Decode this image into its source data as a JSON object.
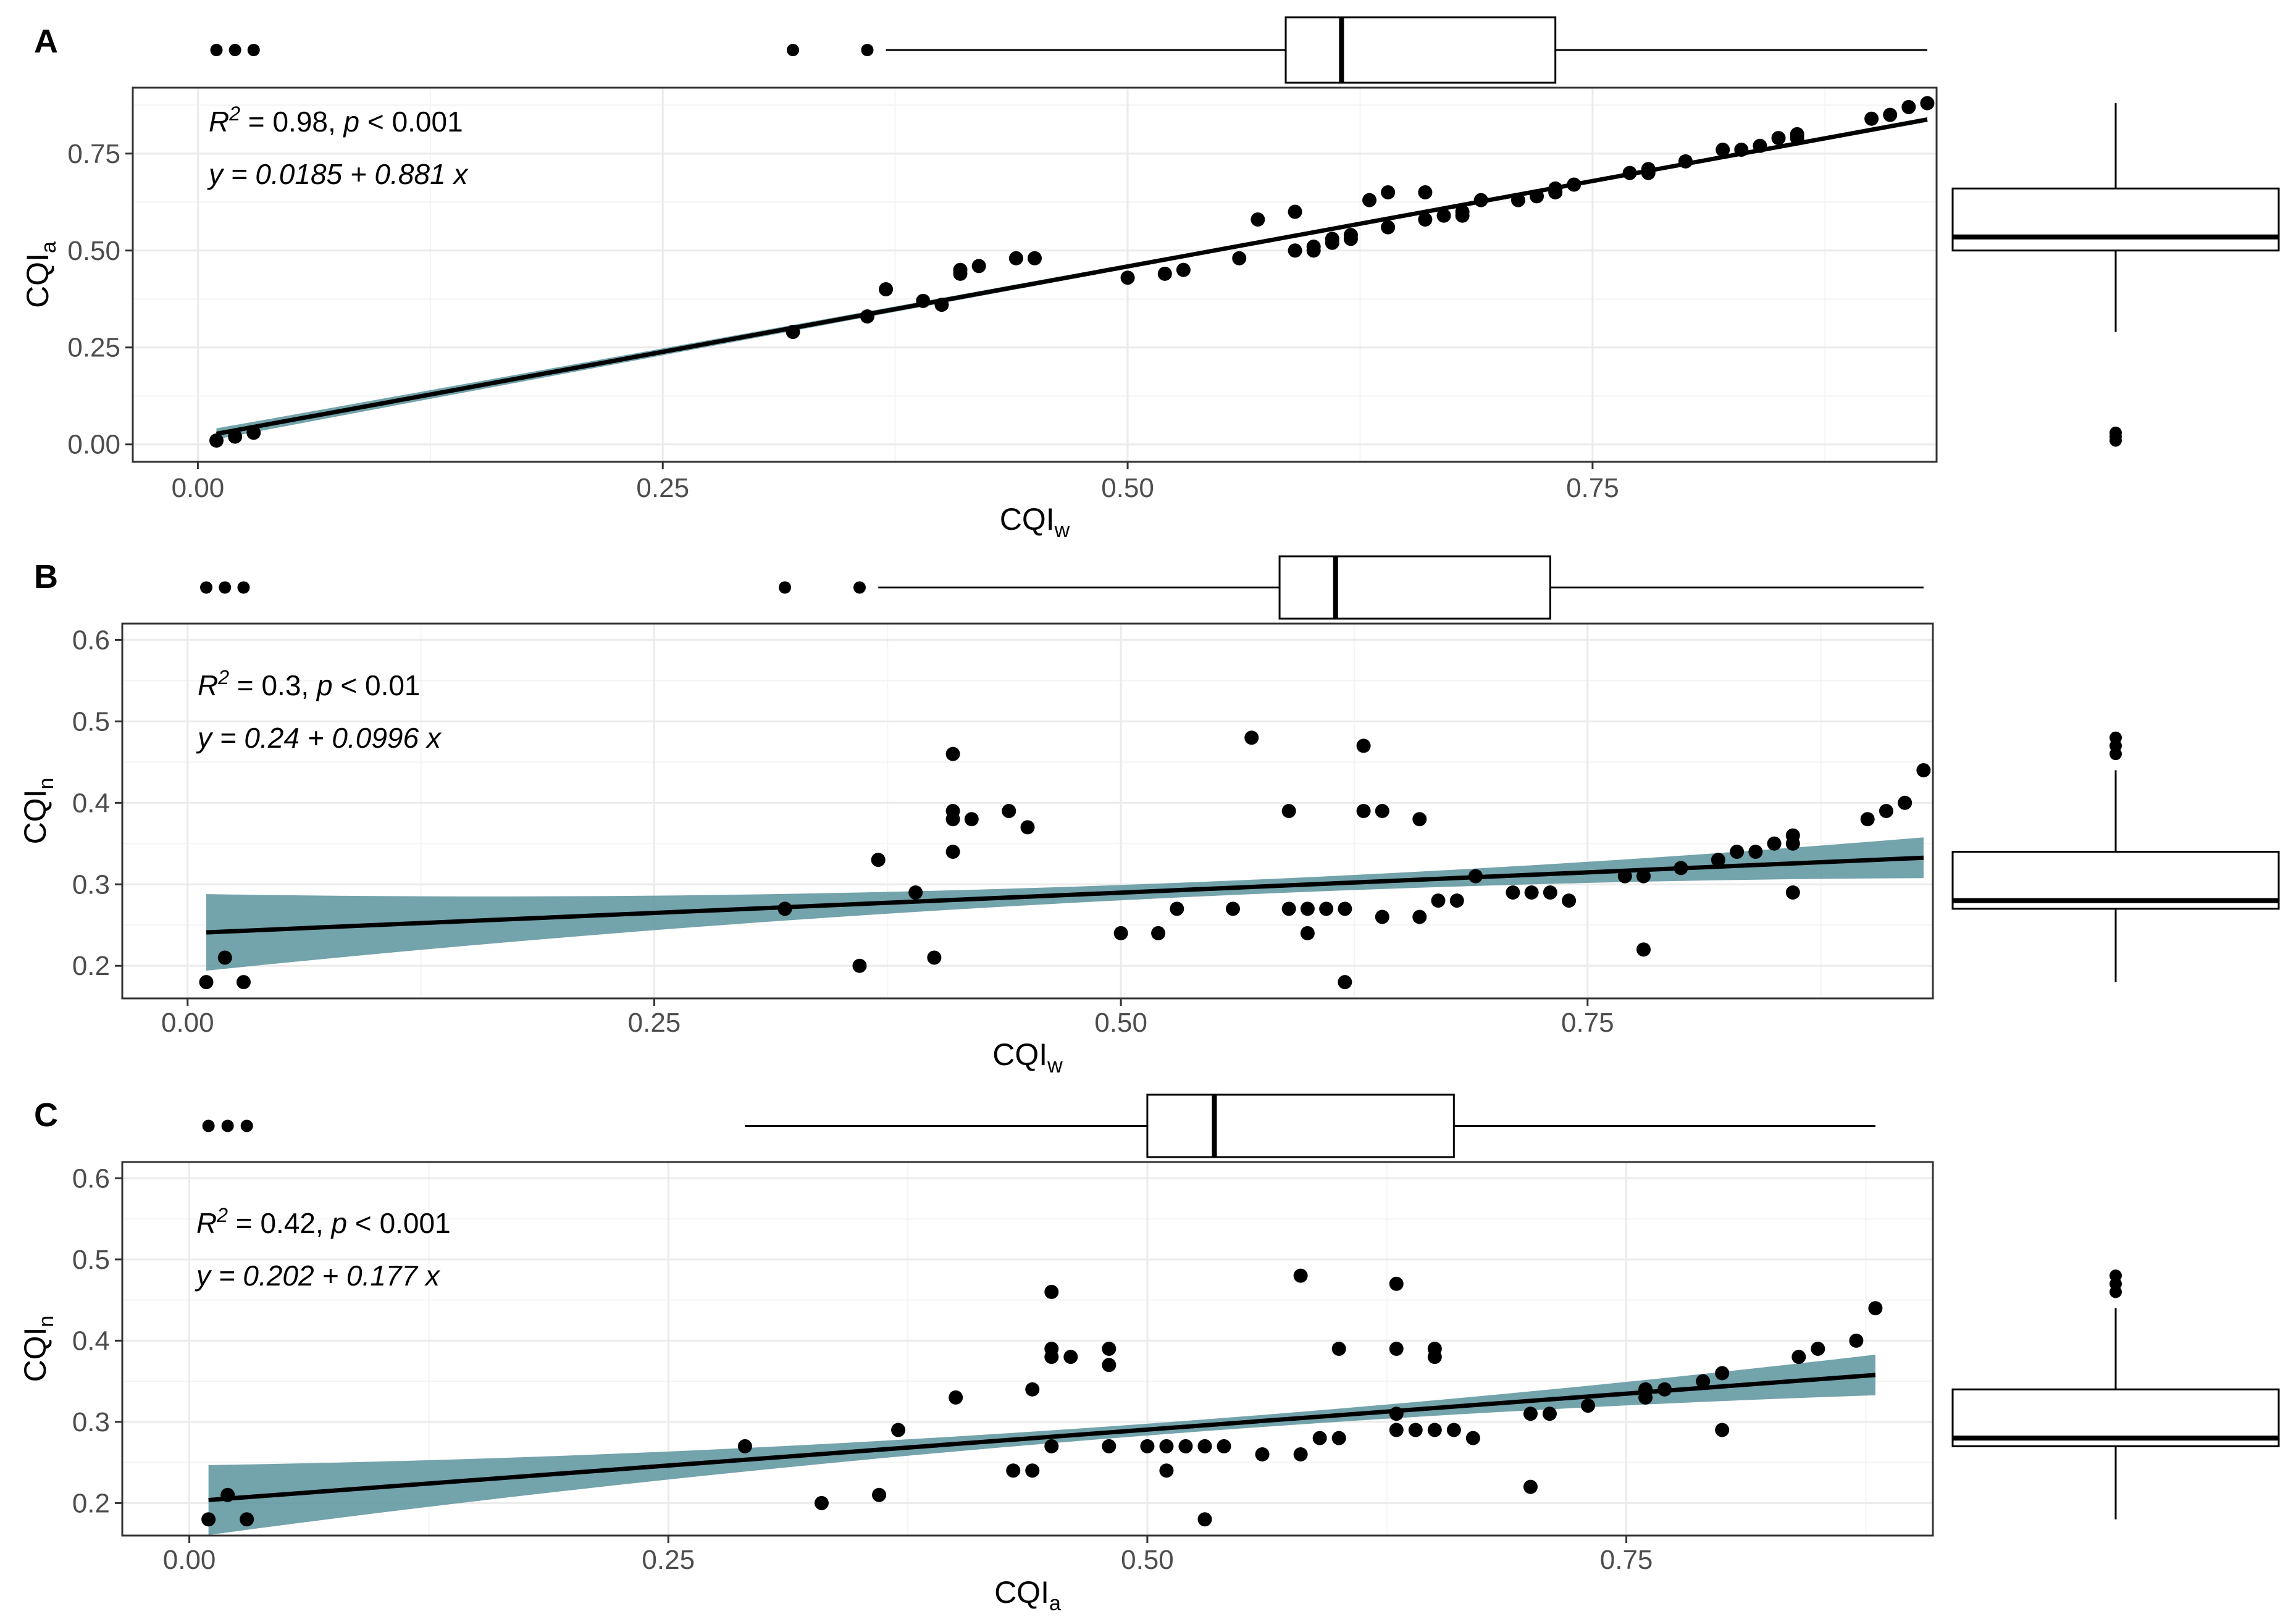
{
  "chart_data": [
    {
      "type": "scatter",
      "panel": "A",
      "xlabel": "CQI",
      "xlabel_sub": "w",
      "ylabel": "CQI",
      "ylabel_sub": "a",
      "xlim": [
        -0.035,
        0.935
      ],
      "ylim": [
        -0.045,
        0.92
      ],
      "x_ticks": [
        0.0,
        0.25,
        0.5,
        0.75
      ],
      "x_tick_labels": [
        "0.00",
        "0.25",
        "0.50",
        "0.75"
      ],
      "y_ticks": [
        0.0,
        0.25,
        0.5,
        0.75
      ],
      "y_tick_labels": [
        "0.00",
        "0.25",
        "0.50",
        "0.75"
      ],
      "annotation": {
        "r2_label": "R",
        "r2_value": " = 0.98, ",
        "p_label": "p",
        "p_value": " < 0.001",
        "equation": "y = 0.0185 + 0.881 x"
      },
      "fit": {
        "intercept": 0.0185,
        "slope": 0.881,
        "x_range": [
          0.01,
          0.93
        ],
        "ci": [
          0.014,
          0.006,
          0.006
        ]
      },
      "grid": true,
      "points": [
        [
          0.01,
          0.01
        ],
        [
          0.02,
          0.02
        ],
        [
          0.03,
          0.03
        ],
        [
          0.32,
          0.29
        ],
        [
          0.36,
          0.33
        ],
        [
          0.37,
          0.4
        ],
        [
          0.39,
          0.37
        ],
        [
          0.4,
          0.36
        ],
        [
          0.41,
          0.44
        ],
        [
          0.41,
          0.45
        ],
        [
          0.42,
          0.46
        ],
        [
          0.44,
          0.48
        ],
        [
          0.45,
          0.48
        ],
        [
          0.5,
          0.43
        ],
        [
          0.52,
          0.44
        ],
        [
          0.53,
          0.45
        ],
        [
          0.56,
          0.48
        ],
        [
          0.57,
          0.58
        ],
        [
          0.59,
          0.5
        ],
        [
          0.59,
          0.6
        ],
        [
          0.6,
          0.5
        ],
        [
          0.6,
          0.51
        ],
        [
          0.61,
          0.52
        ],
        [
          0.61,
          0.53
        ],
        [
          0.62,
          0.53
        ],
        [
          0.62,
          0.54
        ],
        [
          0.63,
          0.63
        ],
        [
          0.64,
          0.65
        ],
        [
          0.64,
          0.56
        ],
        [
          0.66,
          0.58
        ],
        [
          0.66,
          0.65
        ],
        [
          0.67,
          0.59
        ],
        [
          0.68,
          0.59
        ],
        [
          0.68,
          0.6
        ],
        [
          0.69,
          0.63
        ],
        [
          0.71,
          0.63
        ],
        [
          0.72,
          0.64
        ],
        [
          0.73,
          0.65
        ],
        [
          0.73,
          0.66
        ],
        [
          0.74,
          0.67
        ],
        [
          0.77,
          0.7
        ],
        [
          0.78,
          0.7
        ],
        [
          0.78,
          0.71
        ],
        [
          0.8,
          0.73
        ],
        [
          0.82,
          0.76
        ],
        [
          0.83,
          0.76
        ],
        [
          0.84,
          0.77
        ],
        [
          0.85,
          0.79
        ],
        [
          0.86,
          0.79
        ],
        [
          0.86,
          0.8
        ],
        [
          0.9,
          0.84
        ],
        [
          0.91,
          0.85
        ],
        [
          0.92,
          0.87
        ],
        [
          0.93,
          0.88
        ]
      ],
      "top_box": {
        "min": 0.37,
        "q1": 0.585,
        "median": 0.615,
        "q3": 0.73,
        "max": 0.93,
        "outliers": [
          0.01,
          0.02,
          0.03,
          0.32,
          0.36
        ]
      },
      "right_box": {
        "min": 0.29,
        "q1": 0.5,
        "median": 0.535,
        "q3": 0.66,
        "max": 0.88,
        "outliers": [
          0.01,
          0.02,
          0.03
        ]
      }
    },
    {
      "type": "scatter",
      "panel": "B",
      "xlabel": "CQI",
      "xlabel_sub": "w",
      "ylabel": "CQI",
      "ylabel_sub": "n",
      "xlim": [
        -0.035,
        0.935
      ],
      "ylim": [
        0.16,
        0.62
      ],
      "x_ticks": [
        0.0,
        0.25,
        0.5,
        0.75
      ],
      "x_tick_labels": [
        "0.00",
        "0.25",
        "0.50",
        "0.75"
      ],
      "y_ticks": [
        0.2,
        0.3,
        0.4,
        0.5,
        0.6
      ],
      "y_tick_labels": [
        "0.2",
        "0.3",
        "0.4",
        "0.5",
        "0.6"
      ],
      "annotation": {
        "r2_label": "R",
        "r2_value": " = 0.3, ",
        "p_label": "p",
        "p_value": " < 0.01",
        "equation": "y = 0.24 + 0.0996 x"
      },
      "fit": {
        "intercept": 0.24,
        "slope": 0.0996,
        "x_range": [
          0.01,
          0.93
        ],
        "ci": [
          0.047,
          0.01,
          0.025
        ]
      },
      "grid": true,
      "points": [
        [
          0.01,
          0.18
        ],
        [
          0.02,
          0.21
        ],
        [
          0.03,
          0.18
        ],
        [
          0.32,
          0.27
        ],
        [
          0.36,
          0.2
        ],
        [
          0.37,
          0.33
        ],
        [
          0.39,
          0.29
        ],
        [
          0.4,
          0.21
        ],
        [
          0.41,
          0.46
        ],
        [
          0.41,
          0.39
        ],
        [
          0.41,
          0.38
        ],
        [
          0.41,
          0.34
        ],
        [
          0.42,
          0.38
        ],
        [
          0.44,
          0.39
        ],
        [
          0.45,
          0.37
        ],
        [
          0.5,
          0.24
        ],
        [
          0.52,
          0.24
        ],
        [
          0.53,
          0.27
        ],
        [
          0.56,
          0.27
        ],
        [
          0.57,
          0.48
        ],
        [
          0.59,
          0.39
        ],
        [
          0.59,
          0.27
        ],
        [
          0.6,
          0.27
        ],
        [
          0.6,
          0.24
        ],
        [
          0.61,
          0.27
        ],
        [
          0.62,
          0.27
        ],
        [
          0.62,
          0.18
        ],
        [
          0.63,
          0.47
        ],
        [
          0.63,
          0.39
        ],
        [
          0.64,
          0.39
        ],
        [
          0.64,
          0.26
        ],
        [
          0.66,
          0.38
        ],
        [
          0.66,
          0.26
        ],
        [
          0.67,
          0.28
        ],
        [
          0.68,
          0.28
        ],
        [
          0.69,
          0.31
        ],
        [
          0.71,
          0.29
        ],
        [
          0.72,
          0.29
        ],
        [
          0.73,
          0.29
        ],
        [
          0.74,
          0.28
        ],
        [
          0.77,
          0.31
        ],
        [
          0.78,
          0.31
        ],
        [
          0.78,
          0.22
        ],
        [
          0.8,
          0.32
        ],
        [
          0.82,
          0.33
        ],
        [
          0.83,
          0.34
        ],
        [
          0.84,
          0.34
        ],
        [
          0.85,
          0.35
        ],
        [
          0.86,
          0.35
        ],
        [
          0.86,
          0.36
        ],
        [
          0.86,
          0.29
        ],
        [
          0.9,
          0.38
        ],
        [
          0.91,
          0.39
        ],
        [
          0.92,
          0.4
        ],
        [
          0.93,
          0.44
        ]
      ],
      "top_box": {
        "min": 0.37,
        "q1": 0.585,
        "median": 0.615,
        "q3": 0.73,
        "max": 0.93,
        "outliers": [
          0.01,
          0.02,
          0.03,
          0.32,
          0.36
        ]
      },
      "right_box": {
        "min": 0.18,
        "q1": 0.27,
        "median": 0.28,
        "q3": 0.34,
        "max": 0.44,
        "outliers": [
          0.46,
          0.47,
          0.48
        ]
      }
    },
    {
      "type": "scatter",
      "panel": "C",
      "xlabel": "CQI",
      "xlabel_sub": "a",
      "ylabel": "CQI",
      "ylabel_sub": "n",
      "xlim": [
        -0.035,
        0.91
      ],
      "ylim": [
        0.16,
        0.62
      ],
      "x_ticks": [
        0.0,
        0.25,
        0.5,
        0.75
      ],
      "x_tick_labels": [
        "0.00",
        "0.25",
        "0.50",
        "0.75"
      ],
      "y_ticks": [
        0.2,
        0.3,
        0.4,
        0.5,
        0.6
      ],
      "y_tick_labels": [
        "0.2",
        "0.3",
        "0.4",
        "0.5",
        "0.6"
      ],
      "annotation": {
        "r2_label": "R",
        "r2_value": " = 0.42, ",
        "p_label": "p",
        "p_value": " < 0.001",
        "equation": "y = 0.202 + 0.177 x"
      },
      "fit": {
        "intercept": 0.202,
        "slope": 0.177,
        "x_range": [
          0.01,
          0.88
        ],
        "ci": [
          0.043,
          0.008,
          0.025
        ]
      },
      "grid": true,
      "points": [
        [
          0.01,
          0.18
        ],
        [
          0.02,
          0.21
        ],
        [
          0.03,
          0.18
        ],
        [
          0.29,
          0.27
        ],
        [
          0.33,
          0.2
        ],
        [
          0.36,
          0.21
        ],
        [
          0.37,
          0.29
        ],
        [
          0.4,
          0.33
        ],
        [
          0.43,
          0.24
        ],
        [
          0.44,
          0.34
        ],
        [
          0.44,
          0.24
        ],
        [
          0.45,
          0.46
        ],
        [
          0.45,
          0.39
        ],
        [
          0.45,
          0.38
        ],
        [
          0.45,
          0.27
        ],
        [
          0.46,
          0.38
        ],
        [
          0.48,
          0.39
        ],
        [
          0.48,
          0.37
        ],
        [
          0.48,
          0.27
        ],
        [
          0.5,
          0.27
        ],
        [
          0.51,
          0.24
        ],
        [
          0.51,
          0.27
        ],
        [
          0.52,
          0.27
        ],
        [
          0.53,
          0.27
        ],
        [
          0.53,
          0.18
        ],
        [
          0.54,
          0.27
        ],
        [
          0.56,
          0.26
        ],
        [
          0.58,
          0.48
        ],
        [
          0.58,
          0.26
        ],
        [
          0.59,
          0.28
        ],
        [
          0.6,
          0.39
        ],
        [
          0.6,
          0.28
        ],
        [
          0.63,
          0.47
        ],
        [
          0.63,
          0.39
        ],
        [
          0.63,
          0.31
        ],
        [
          0.63,
          0.29
        ],
        [
          0.64,
          0.29
        ],
        [
          0.65,
          0.39
        ],
        [
          0.65,
          0.38
        ],
        [
          0.65,
          0.29
        ],
        [
          0.66,
          0.29
        ],
        [
          0.67,
          0.28
        ],
        [
          0.7,
          0.31
        ],
        [
          0.7,
          0.22
        ],
        [
          0.71,
          0.31
        ],
        [
          0.73,
          0.32
        ],
        [
          0.76,
          0.34
        ],
        [
          0.76,
          0.33
        ],
        [
          0.77,
          0.34
        ],
        [
          0.79,
          0.35
        ],
        [
          0.8,
          0.36
        ],
        [
          0.8,
          0.29
        ],
        [
          0.84,
          0.38
        ],
        [
          0.85,
          0.39
        ],
        [
          0.87,
          0.4
        ],
        [
          0.88,
          0.44
        ]
      ],
      "top_box": {
        "min": 0.29,
        "q1": 0.5,
        "median": 0.535,
        "q3": 0.66,
        "max": 0.88,
        "outliers": [
          0.01,
          0.02,
          0.03
        ]
      },
      "right_box": {
        "min": 0.18,
        "q1": 0.27,
        "median": 0.28,
        "q3": 0.34,
        "max": 0.44,
        "outliers": [
          0.46,
          0.47,
          0.48
        ]
      }
    }
  ],
  "colors": {
    "ribbon": "#5a939c",
    "point": "#000000",
    "line": "#000000",
    "panel_border": "#333333",
    "grid": "#ebebeb"
  }
}
